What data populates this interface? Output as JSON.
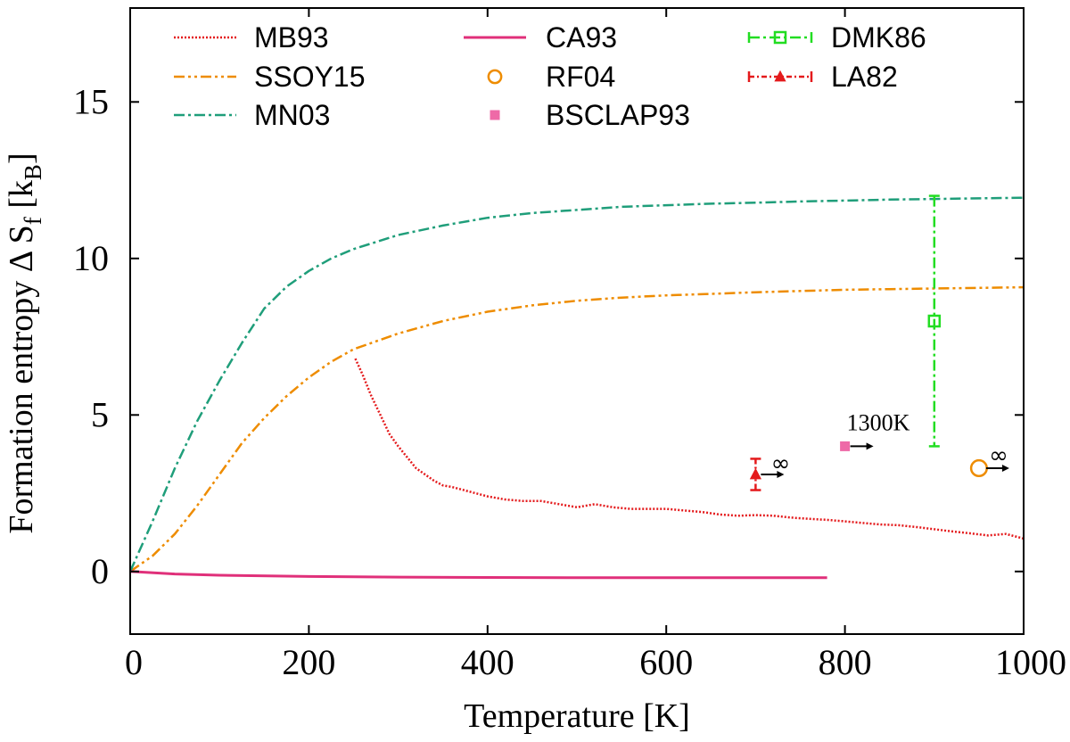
{
  "chart_data": {
    "type": "line",
    "xlabel": "Temperature [K]",
    "ylabel": {
      "main": "Formation entropy Δ S",
      "sub_f": "f",
      "unit_open": " [k",
      "sub_B": "B",
      "unit_close": "]"
    },
    "xlim": [
      0,
      1000
    ],
    "ylim": [
      -2,
      18
    ],
    "xticks": [
      0,
      200,
      400,
      600,
      800,
      1000
    ],
    "yticks": [
      0,
      5,
      10,
      15
    ],
    "grid": false,
    "legend_position": "top",
    "series": [
      {
        "name": "MB93",
        "kind": "line",
        "color": "#e41a1c",
        "dash": "dotted",
        "x": [
          252,
          260,
          270,
          280,
          290,
          300,
          320,
          340,
          350,
          360,
          380,
          400,
          420,
          440,
          460,
          480,
          500,
          520,
          540,
          560,
          580,
          600,
          620,
          640,
          660,
          680,
          700,
          720,
          740,
          760,
          780,
          800,
          820,
          840,
          860,
          880,
          900,
          920,
          940,
          960,
          980,
          1000
        ],
        "y": [
          6.8,
          6.3,
          5.6,
          5.0,
          4.4,
          4.0,
          3.3,
          2.9,
          2.75,
          2.7,
          2.55,
          2.4,
          2.3,
          2.25,
          2.25,
          2.15,
          2.05,
          2.15,
          2.05,
          2.0,
          2.0,
          2.0,
          1.95,
          1.9,
          1.82,
          1.78,
          1.8,
          1.78,
          1.72,
          1.68,
          1.65,
          1.6,
          1.55,
          1.5,
          1.48,
          1.42,
          1.35,
          1.28,
          1.22,
          1.15,
          1.2,
          1.05
        ]
      },
      {
        "name": "SSOY15",
        "kind": "line",
        "color": "#ee8c00",
        "dash": "dashdotdot",
        "x": [
          0,
          25,
          50,
          75,
          100,
          125,
          150,
          175,
          200,
          225,
          250,
          300,
          350,
          400,
          450,
          500,
          550,
          600,
          650,
          700,
          750,
          800,
          850,
          900,
          950,
          1000
        ],
        "y": [
          0,
          0.5,
          1.2,
          2.1,
          3.1,
          4.1,
          4.9,
          5.6,
          6.2,
          6.7,
          7.1,
          7.6,
          8.0,
          8.3,
          8.5,
          8.65,
          8.75,
          8.82,
          8.87,
          8.92,
          8.96,
          9.0,
          9.02,
          9.04,
          9.06,
          9.08
        ]
      },
      {
        "name": "MN03",
        "kind": "line",
        "color": "#1f9e7a",
        "dash": "dashdot",
        "x": [
          0,
          25,
          50,
          75,
          100,
          125,
          150,
          175,
          200,
          225,
          250,
          300,
          350,
          400,
          450,
          500,
          550,
          600,
          650,
          700,
          750,
          800,
          850,
          900,
          950,
          1000
        ],
        "y": [
          0,
          1.6,
          3.3,
          4.8,
          6.1,
          7.3,
          8.4,
          9.1,
          9.6,
          10.0,
          10.3,
          10.75,
          11.05,
          11.3,
          11.45,
          11.55,
          11.65,
          11.7,
          11.75,
          11.78,
          11.82,
          11.85,
          11.88,
          11.9,
          11.92,
          11.94
        ]
      },
      {
        "name": "CA93",
        "kind": "line",
        "color": "#e0307a",
        "dash": "solid",
        "x": [
          0,
          50,
          100,
          200,
          300,
          400,
          500,
          600,
          700,
          780
        ],
        "y": [
          0,
          -0.08,
          -0.12,
          -0.16,
          -0.18,
          -0.19,
          -0.2,
          -0.2,
          -0.2,
          -0.2
        ]
      },
      {
        "name": "RF04",
        "kind": "point",
        "color": "#ee8c00",
        "marker": "open-circle",
        "x": 950,
        "y": 3.3,
        "annotation": "∞"
      },
      {
        "name": "BSCLAP93",
        "kind": "point",
        "color": "#ee6aa7",
        "marker": "filled-square",
        "x": 800,
        "y": 4.0,
        "annotation": "1300K"
      },
      {
        "name": "DMK86",
        "kind": "errorbar",
        "color": "#22dd22",
        "marker": "open-square",
        "x": 900,
        "y": 8.0,
        "ymin": 4.0,
        "ymax": 12.0
      },
      {
        "name": "LA82",
        "kind": "errorbar",
        "color": "#e41a1c",
        "marker": "filled-triangle",
        "x": 700,
        "y": 3.1,
        "ymin": 2.6,
        "ymax": 3.6,
        "annotation": "∞"
      }
    ]
  }
}
